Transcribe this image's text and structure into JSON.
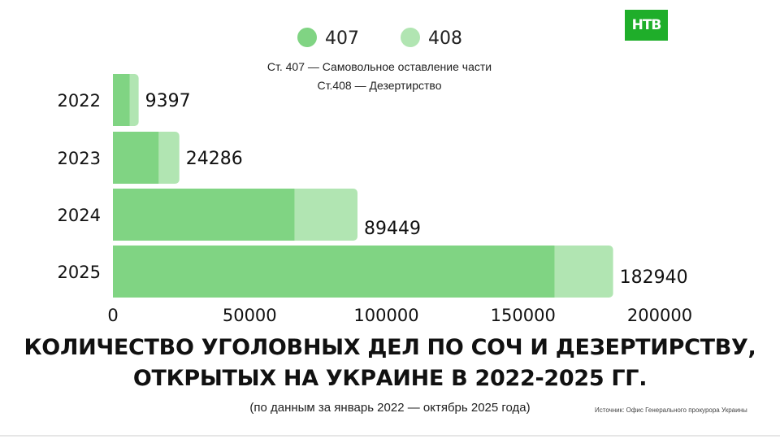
{
  "logo": {
    "text": "НТВ",
    "color": "#1fae2a"
  },
  "legend_notes": [
    "Ст. 407 — Самовольное оставление части",
    "Ст.408 — Дезертирство"
  ],
  "title_lines": [
    "КОЛИЧЕСТВО УГОЛОВНЫХ ДЕЛ ПО СОЧ И ДЕЗЕРТИРСТВУ,",
    "ОТКРЫТЫХ НА УКРАИНЕ В 2022-2025 ГГ."
  ],
  "period": "(по данным за январь 2022 — октябрь 2025 года)",
  "source": "Источник: Офис Генерального прокурора Украины",
  "chart_data": {
    "type": "bar",
    "orientation": "horizontal",
    "stacked": true,
    "categories": [
      "2022",
      "2023",
      "2024",
      "2025"
    ],
    "series": [
      {
        "name": "407",
        "color": "#80d483",
        "values": [
          6100,
          16700,
          66400,
          161500
        ]
      },
      {
        "name": "408",
        "color": "#b1e5b2",
        "values": [
          3297,
          7586,
          23049,
          21440
        ]
      }
    ],
    "totals": [
      9397,
      24286,
      89449,
      182940
    ],
    "total_labels": [
      "9397",
      "24286",
      "89449",
      "182940"
    ],
    "xlim": [
      0,
      200000
    ],
    "xticks": [
      "0",
      "50000",
      "100000",
      "150000",
      "200000"
    ],
    "grid": false,
    "legend_position": "top-center"
  }
}
